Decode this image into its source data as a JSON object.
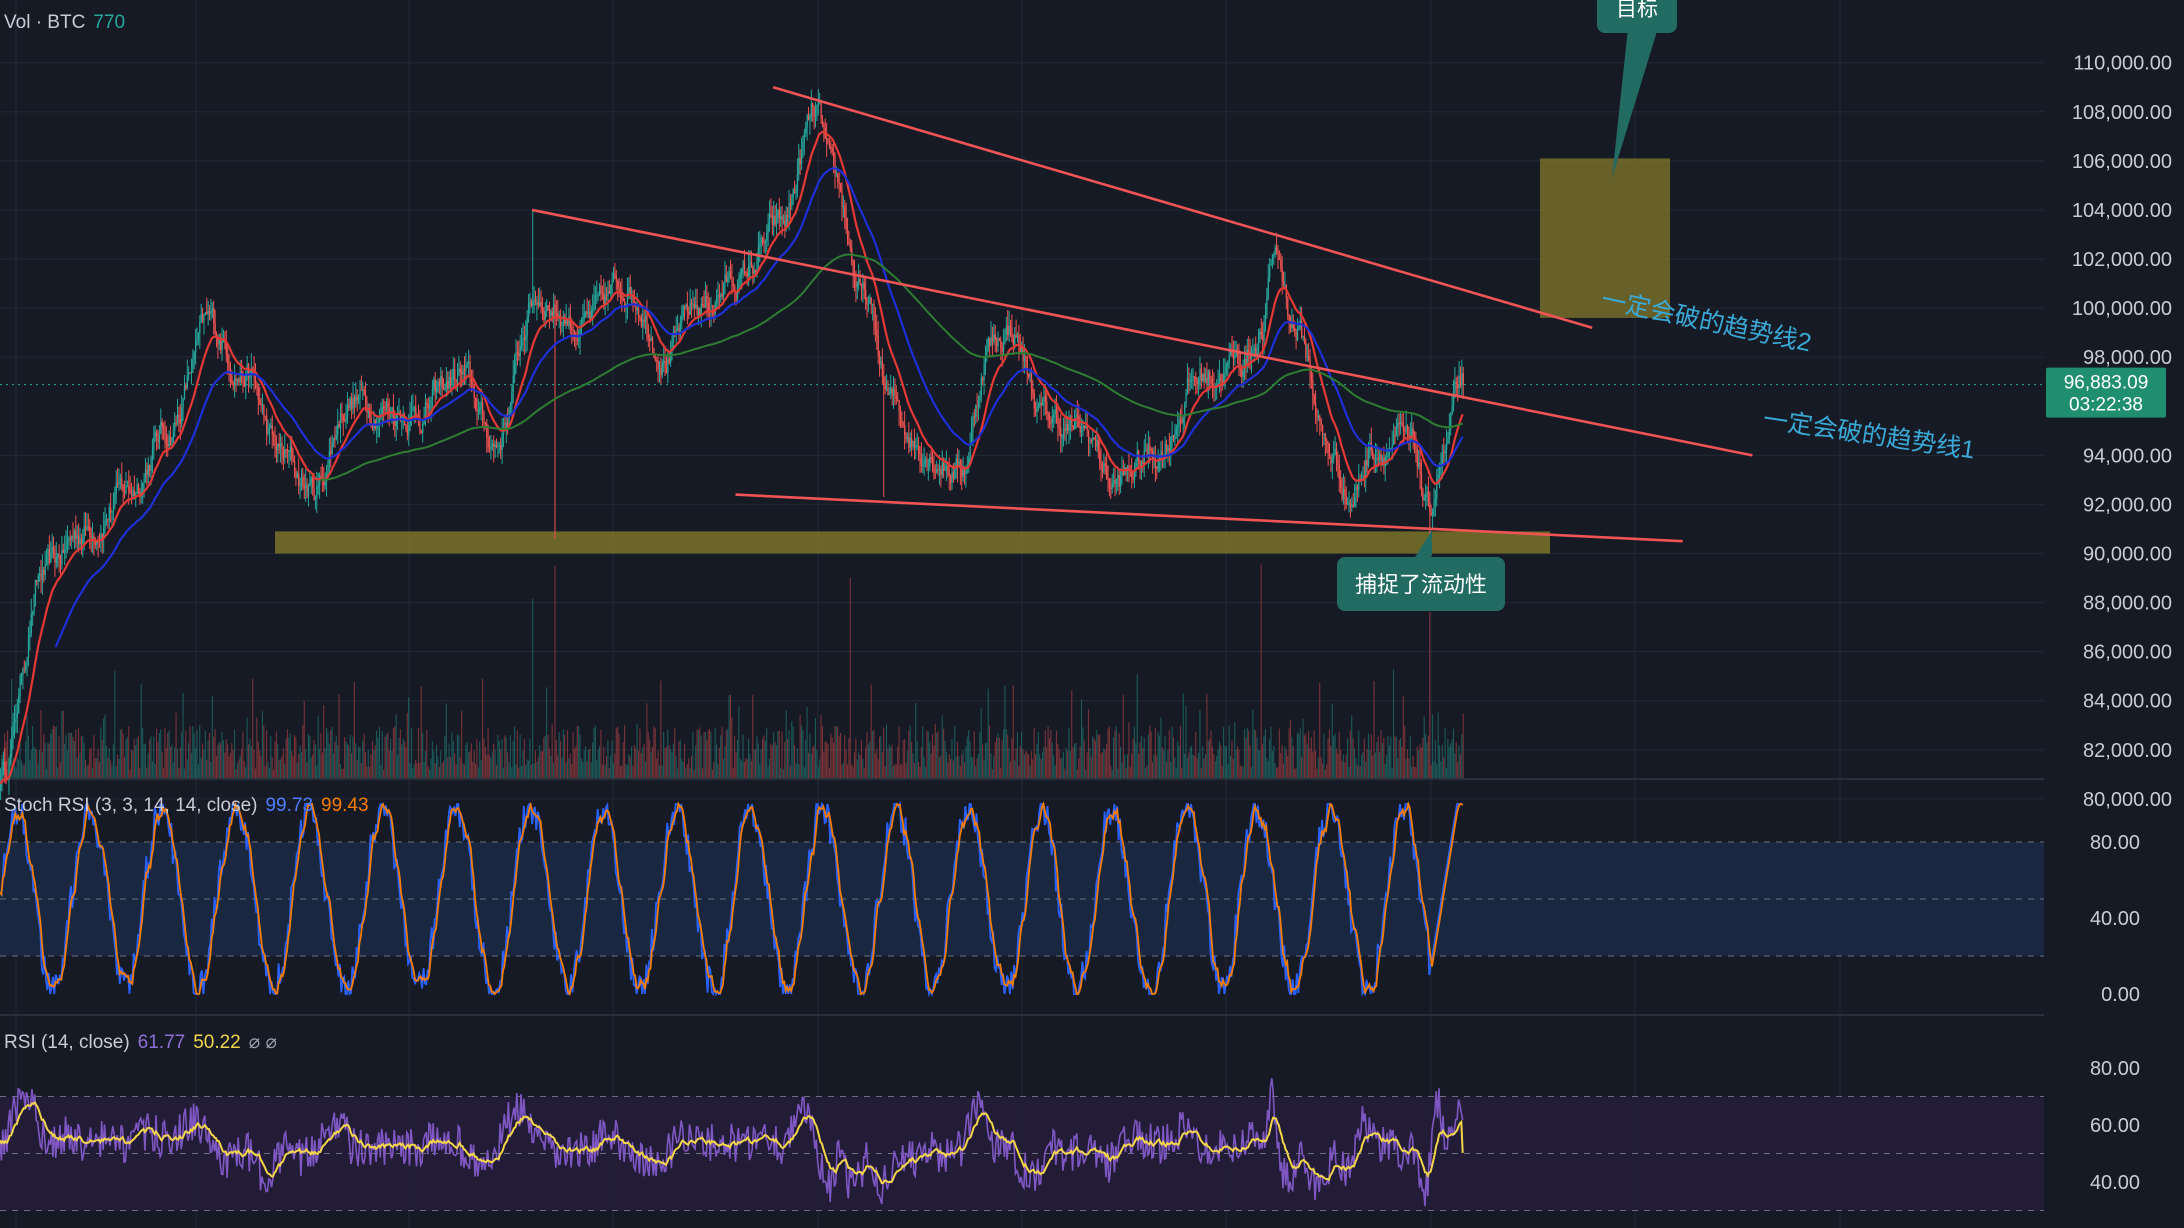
{
  "colors": {
    "background": "#161a25",
    "grid": "#232836",
    "candle_up": "#26a69a",
    "candle_down": "#ef5350",
    "ma_fast": "#e53935",
    "ma_mid": "#1e2fd6",
    "ma_slow": "#2e7d32",
    "trendline": "#f05454",
    "support_zone": "#8a7f2a",
    "target_zone": "#8a7f2a",
    "callout": "#216b63",
    "trend_label": "#3aa9d6",
    "price_tag": "#1f8f6f",
    "stoch_k": "#2962ff",
    "stoch_d": "#f57c00",
    "stoch_band": "#1a2a44",
    "rsi_line": "#7e57c2",
    "rsi_ma": "#f2d54b",
    "rsi_band": "#231d38"
  },
  "main_pane": {
    "volume_legend": {
      "label": "Vol · BTC",
      "value": "770"
    },
    "current_price": "96,883.09",
    "countdown": "03:22:38",
    "annotations": {
      "target": "目标",
      "liquidity": "捕捉了流动性",
      "trendline_1": "一定会破的趋势线1",
      "trendline_2": "一定会破的趋势线2"
    }
  },
  "stoch_pane": {
    "title": "Stoch RSI (3, 3, 14, 14, close)",
    "k_value": "99.73",
    "d_value": "99.43",
    "ticks": [
      "80.00",
      "40.00",
      "0.00"
    ]
  },
  "rsi_pane": {
    "title": "RSI (14, close)",
    "value": "61.77",
    "ma_value": "50.22",
    "extra": "⌀  ⌀",
    "ticks": [
      "80.00",
      "60.00",
      "40.00"
    ]
  },
  "chart_data": {
    "type": "candlestick",
    "symbol": "BTC",
    "y_axis_ticks": [
      110000,
      108000,
      106000,
      104000,
      102000,
      100000,
      98000,
      94000,
      92000,
      90000,
      88000,
      86000,
      84000,
      82000,
      80000
    ],
    "y_range": [
      79200,
      110600
    ],
    "close_path_keypoints": [
      [
        0,
        81000
      ],
      [
        30,
        89000
      ],
      [
        60,
        91000
      ],
      [
        90,
        92500
      ],
      [
        120,
        95000
      ],
      [
        150,
        99200
      ],
      [
        175,
        97500
      ],
      [
        200,
        94000
      ],
      [
        225,
        92500
      ],
      [
        250,
        96300
      ],
      [
        275,
        96000
      ],
      [
        300,
        95800
      ],
      [
        330,
        97200
      ],
      [
        355,
        94500
      ],
      [
        385,
        100500
      ],
      [
        420,
        99300
      ],
      [
        450,
        101000
      ],
      [
        480,
        98200
      ],
      [
        500,
        100000
      ],
      [
        530,
        101200
      ],
      [
        560,
        103200
      ],
      [
        585,
        107800
      ],
      [
        600,
        104600
      ],
      [
        620,
        100200
      ],
      [
        640,
        96000
      ],
      [
        660,
        94500
      ],
      [
        690,
        93500
      ],
      [
        710,
        98500
      ],
      [
        725,
        99200
      ],
      [
        750,
        95500
      ],
      [
        780,
        94800
      ],
      [
        800,
        92800
      ],
      [
        830,
        94200
      ],
      [
        860,
        97200
      ],
      [
        890,
        97800
      ],
      [
        905,
        99000
      ],
      [
        915,
        102200
      ],
      [
        930,
        99200
      ],
      [
        955,
        94000
      ],
      [
        970,
        92300
      ],
      [
        985,
        94400
      ],
      [
        1000,
        94600
      ],
      [
        1015,
        94000
      ],
      [
        1025,
        91500
      ],
      [
        1035,
        94000
      ],
      [
        1050,
        96883
      ]
    ],
    "support_zone": {
      "from": 90000,
      "to": 90900
    },
    "target_zone": {
      "from": 99600,
      "to": 106100
    },
    "trendlines": [
      {
        "name": "一定会破的趋势线2",
        "from": [
          555,
          109000
        ],
        "to": [
          1143,
          99200
        ]
      },
      {
        "name": "一定会破的趋势线1",
        "from": [
          382,
          104000
        ],
        "to": [
          1258,
          94000
        ]
      },
      {
        "name": "lower",
        "from": [
          528,
          92400
        ],
        "to": [
          1208,
          90500
        ]
      }
    ],
    "indicators": {
      "stoch_rsi_k": 99.73,
      "stoch_rsi_d": 99.43,
      "rsi": 61.77,
      "rsi_ma": 50.22
    }
  }
}
